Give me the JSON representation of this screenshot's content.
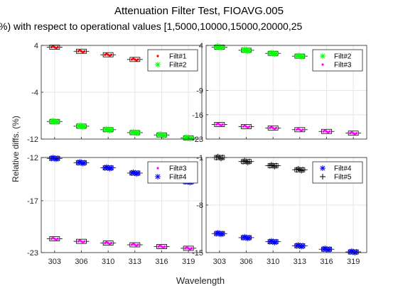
{
  "figure": {
    "title": "Attenuation Filter Test, FIOAVG.005",
    "subtitle": "%) with respect to operational values [1,5000,10000,15000,20000,25",
    "ylabel": "Relative diffs. (%)",
    "xlabel": "Wavelength"
  },
  "colors": {
    "red": "#ff0000",
    "green": "#00ff00",
    "magenta": "#ff00ff",
    "blue": "#0000ff",
    "black": "#000000",
    "grid": "#e6e6e6",
    "axes": "#262626"
  },
  "chart_data": [
    {
      "type": "scatter",
      "panel": "top-left",
      "categories": [
        "303",
        "306",
        "310",
        "313",
        "316",
        "319"
      ],
      "ylim": [
        -12,
        4
      ],
      "yticks": [
        4,
        -4,
        -12
      ],
      "grid": true,
      "legend_position": "top-right",
      "series": [
        {
          "name": "Filt#1",
          "marker": "point",
          "color": "red",
          "values": [
            3.7,
            3.0,
            2.4,
            1.6,
            1.1,
            0.6
          ]
        },
        {
          "name": "Filt#2",
          "marker": "star",
          "color": "green",
          "values": [
            -9.0,
            -9.8,
            -10.4,
            -10.9,
            -11.3,
            -11.8
          ]
        }
      ]
    },
    {
      "type": "scatter",
      "panel": "top-right",
      "categories": [
        "303",
        "306",
        "310",
        "313",
        "316",
        "319"
      ],
      "ylim": [
        -23,
        4
      ],
      "yticks": [
        4,
        -9,
        -16,
        -23
      ],
      "grid": true,
      "legend_position": "top-right",
      "series": [
        {
          "name": "Filt#2",
          "marker": "star",
          "color": "green",
          "values": [
            3.5,
            2.6,
            1.7,
            0.9,
            0.1,
            -0.5
          ]
        },
        {
          "name": "Filt#3",
          "marker": "point",
          "color": "magenta",
          "values": [
            -18.8,
            -19.4,
            -19.8,
            -20.3,
            -20.8,
            -21.3
          ]
        }
      ]
    },
    {
      "type": "scatter",
      "panel": "bottom-left",
      "categories": [
        "303",
        "306",
        "310",
        "313",
        "316",
        "319"
      ],
      "ylim": [
        -23,
        -12
      ],
      "yticks": [
        -12,
        -17,
        -23
      ],
      "grid": true,
      "legend_position": "top-right",
      "series": [
        {
          "name": "Filt#3",
          "marker": "point",
          "color": "magenta",
          "values": [
            -21.4,
            -21.7,
            -21.9,
            -22.1,
            -22.3,
            -22.5
          ]
        },
        {
          "name": "Filt#4",
          "marker": "star",
          "color": "blue",
          "values": [
            -12.1,
            -12.6,
            -13.2,
            -13.8,
            -14.2,
            -14.8
          ]
        }
      ]
    },
    {
      "type": "scatter",
      "panel": "bottom-right",
      "categories": [
        "303",
        "306",
        "310",
        "313",
        "316",
        "319"
      ],
      "ylim": [
        -15,
        -1
      ],
      "yticks": [
        -1,
        -8,
        -15
      ],
      "grid": true,
      "legend_position": "top-right",
      "series": [
        {
          "name": "Filt#4",
          "marker": "star",
          "color": "blue",
          "values": [
            -12.2,
            -12.8,
            -13.4,
            -14.0,
            -14.5,
            -14.9
          ]
        },
        {
          "name": "Filt#5",
          "marker": "plus",
          "color": "black",
          "values": [
            -1.0,
            -1.6,
            -2.2,
            -2.8,
            -3.5,
            -4.0
          ]
        }
      ]
    }
  ]
}
